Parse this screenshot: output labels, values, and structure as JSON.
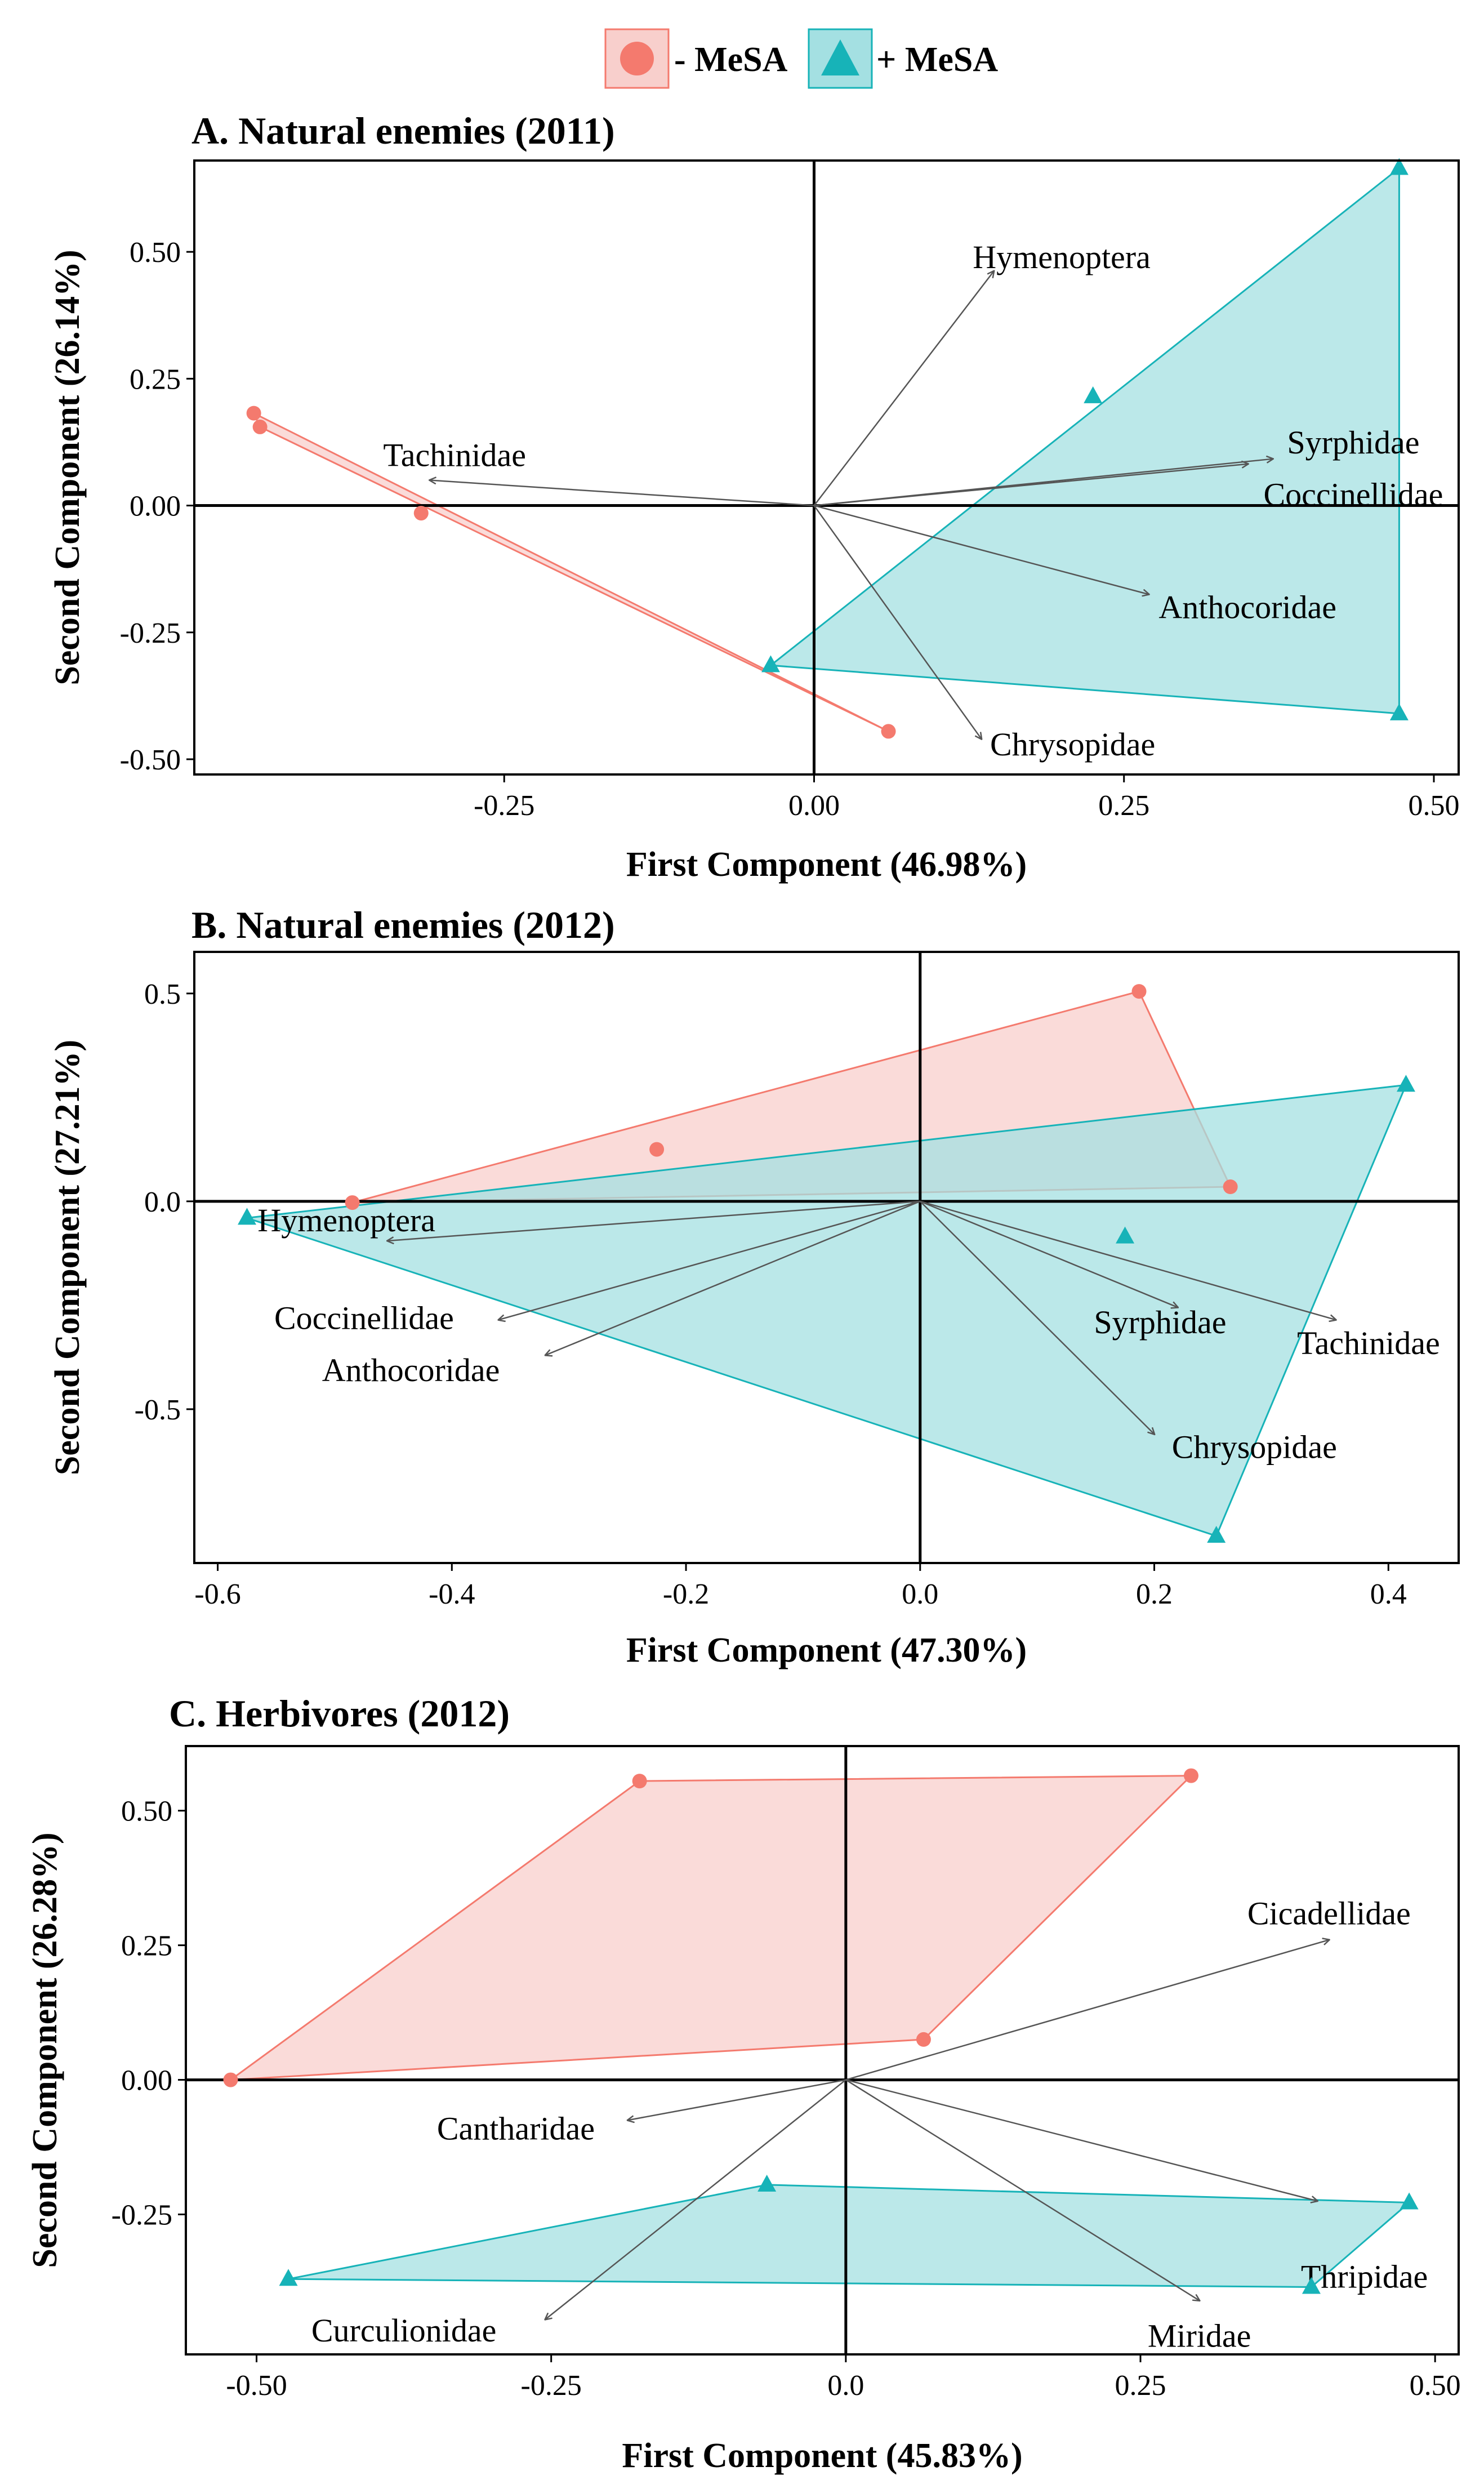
{
  "legend": {
    "items": [
      {
        "label": "- MeSA",
        "marker": "circle",
        "color": "#f47a6e",
        "fill": "#f8cfcc"
      },
      {
        "label": "+ MeSA",
        "marker": "triangle",
        "color": "#17b3b8",
        "fill": "#a4e0e2"
      }
    ]
  },
  "chart_data": [
    {
      "id": "A",
      "type": "scatter",
      "title": "A. Natural enemies (2011)",
      "xlabel": "First Component (46.98%)",
      "ylabel": "Second Component (26.14%)",
      "xlim": [
        -0.5,
        0.52
      ],
      "ylim": [
        -0.53,
        0.68
      ],
      "xticks": [
        -0.25,
        0.0,
        0.25,
        0.5
      ],
      "xtick_labels": [
        "-0.25",
        "0.00",
        "0.25",
        "0.50"
      ],
      "yticks": [
        -0.5,
        -0.25,
        0.0,
        0.25,
        0.5
      ],
      "ytick_labels": [
        "-0.50",
        "-0.25",
        "0.00",
        "0.25",
        "0.50"
      ],
      "series": [
        {
          "name": "- MeSA",
          "points": [
            [
              -0.452,
              0.182
            ],
            [
              -0.447,
              0.155
            ],
            [
              -0.317,
              -0.015
            ],
            [
              0.06,
              -0.445
            ]
          ],
          "hull": [
            [
              -0.452,
              0.182
            ],
            [
              -0.447,
              0.155
            ],
            [
              0.06,
              -0.445
            ]
          ]
        },
        {
          "name": "+ MeSA",
          "points": [
            [
              0.472,
              0.665
            ],
            [
              0.225,
              0.215
            ],
            [
              -0.035,
              -0.315
            ],
            [
              0.472,
              -0.41
            ]
          ],
          "hull": [
            [
              0.472,
              0.665
            ],
            [
              -0.035,
              -0.315
            ],
            [
              0.472,
              -0.41
            ]
          ]
        }
      ],
      "vectors": [
        {
          "name": "Hymenoptera",
          "x": 0.145,
          "y": 0.462,
          "label_x": 0.128,
          "label_y": 0.49,
          "anchor": "start"
        },
        {
          "name": "Tachinidae",
          "x": -0.31,
          "y": 0.05,
          "label_x": -0.29,
          "label_y": 0.1,
          "anchor": "middle"
        },
        {
          "name": "Syrphidae",
          "x": 0.37,
          "y": 0.092,
          "label_x": 0.435,
          "label_y": 0.125,
          "anchor": "middle"
        },
        {
          "name": "Coccinellidae",
          "x": 0.35,
          "y": 0.082,
          "label_x": 0.435,
          "label_y": 0.022,
          "anchor": "middle"
        },
        {
          "name": "Anthocoridae",
          "x": 0.27,
          "y": -0.175,
          "label_x": 0.278,
          "label_y": -0.2,
          "anchor": "start"
        },
        {
          "name": "Chrysopidae",
          "x": 0.135,
          "y": -0.46,
          "label_x": 0.142,
          "label_y": -0.47,
          "anchor": "start"
        }
      ]
    },
    {
      "id": "B",
      "type": "scatter",
      "title": "B. Natural enemies (2012)",
      "xlabel": "First Component (47.30%)",
      "ylabel": "Second Component (27.21%)",
      "xlim": [
        -0.62,
        0.46
      ],
      "ylim": [
        -0.87,
        0.6
      ],
      "xticks": [
        -0.6,
        -0.4,
        -0.2,
        0.0,
        0.2,
        0.4
      ],
      "xtick_labels": [
        "-0.6",
        "-0.4",
        "-0.2",
        "0.0",
        "0.2",
        "0.4"
      ],
      "yticks": [
        -0.5,
        0.0,
        0.5
      ],
      "ytick_labels": [
        "-0.5",
        "0.0",
        "0.5"
      ],
      "series": [
        {
          "name": "- MeSA",
          "points": [
            [
              0.187,
              0.505
            ],
            [
              -0.225,
              0.125
            ],
            [
              -0.485,
              -0.003
            ],
            [
              0.265,
              0.035
            ]
          ],
          "hull": [
            [
              0.187,
              0.505
            ],
            [
              -0.485,
              -0.003
            ],
            [
              0.265,
              0.035
            ]
          ]
        },
        {
          "name": "+ MeSA",
          "points": [
            [
              0.415,
              0.28
            ],
            [
              0.175,
              -0.085
            ],
            [
              -0.575,
              -0.04
            ],
            [
              0.253,
              -0.805
            ]
          ],
          "hull": [
            [
              0.415,
              0.28
            ],
            [
              -0.575,
              -0.04
            ],
            [
              0.253,
              -0.805
            ]
          ]
        }
      ],
      "vectors": [
        {
          "name": "Hymenoptera",
          "x": -0.455,
          "y": -0.095,
          "label_x": -0.49,
          "label_y": -0.045,
          "anchor": "middle"
        },
        {
          "name": "Coccinellidae",
          "x": -0.36,
          "y": -0.285,
          "label_x": -0.475,
          "label_y": -0.28,
          "anchor": "middle"
        },
        {
          "name": "Anthocoridae",
          "x": -0.32,
          "y": -0.37,
          "label_x": -0.435,
          "label_y": -0.405,
          "anchor": "middle"
        },
        {
          "name": "Syrphidae",
          "x": 0.22,
          "y": -0.255,
          "label_x": 0.205,
          "label_y": -0.29,
          "anchor": "middle"
        },
        {
          "name": "Tachinidae",
          "x": 0.355,
          "y": -0.285,
          "label_x": 0.383,
          "label_y": -0.34,
          "anchor": "middle"
        },
        {
          "name": "Chrysopidae",
          "x": 0.2,
          "y": -0.56,
          "label_x": 0.215,
          "label_y": -0.59,
          "anchor": "start"
        }
      ]
    },
    {
      "id": "C",
      "type": "scatter",
      "title": "C. Herbivores (2012)",
      "xlabel": "First Component (45.83%)",
      "ylabel": "Second Component (26.28%)",
      "xlim": [
        -0.56,
        0.52
      ],
      "ylim": [
        -0.51,
        0.62
      ],
      "xticks": [
        -0.5,
        -0.25,
        0.0,
        0.25,
        0.5
      ],
      "xtick_labels": [
        "-0.50",
        "-0.25",
        "0.0",
        "0.25",
        "0.50"
      ],
      "yticks": [
        -0.25,
        0.0,
        0.25,
        0.5
      ],
      "ytick_labels": [
        "-0.25",
        "0.00",
        "0.25",
        "0.50"
      ],
      "series": [
        {
          "name": "- MeSA",
          "points": [
            [
              -0.175,
              0.555
            ],
            [
              0.293,
              0.565
            ],
            [
              -0.522,
              0.0
            ],
            [
              0.066,
              0.075
            ]
          ],
          "hull": [
            [
              -0.175,
              0.555
            ],
            [
              0.293,
              0.565
            ],
            [
              0.066,
              0.075
            ],
            [
              -0.522,
              0.0
            ]
          ]
        },
        {
          "name": "+ MeSA",
          "points": [
            [
              -0.067,
              -0.195
            ],
            [
              0.478,
              -0.228
            ],
            [
              0.395,
              -0.385
            ],
            [
              -0.473,
              -0.37
            ]
          ],
          "hull": [
            [
              -0.067,
              -0.195
            ],
            [
              0.478,
              -0.228
            ],
            [
              0.395,
              -0.385
            ],
            [
              -0.473,
              -0.37
            ]
          ]
        }
      ],
      "vectors": [
        {
          "name": "Cicadellidae",
          "x": 0.41,
          "y": 0.26,
          "label_x": 0.41,
          "label_y": 0.31,
          "anchor": "middle"
        },
        {
          "name": "Cantharidae",
          "x": -0.185,
          "y": -0.075,
          "label_x": -0.28,
          "label_y": -0.09,
          "anchor": "middle"
        },
        {
          "name": "Thripidae",
          "x": 0.4,
          "y": -0.225,
          "label_x": 0.44,
          "label_y": -0.365,
          "anchor": "middle"
        },
        {
          "name": "Miridae",
          "x": 0.3,
          "y": -0.41,
          "label_x": 0.3,
          "label_y": -0.475,
          "anchor": "middle"
        },
        {
          "name": "Curculionidae",
          "x": -0.255,
          "y": -0.445,
          "label_x": -0.375,
          "label_y": -0.465,
          "anchor": "middle"
        }
      ]
    }
  ]
}
